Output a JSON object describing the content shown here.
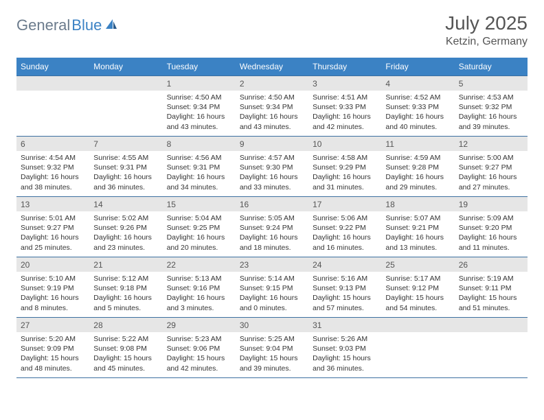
{
  "logo": {
    "text1": "General",
    "text2": "Blue"
  },
  "title": "July 2025",
  "subtitle": "Ketzin, Germany",
  "colors": {
    "header_bg": "#3b82c4",
    "header_text": "#ffffff",
    "daynum_bg": "#e6e6e6",
    "row_border": "#3b6fa0",
    "text": "#333333",
    "title_text": "#555555",
    "logo_gray": "#6b7b8c",
    "logo_blue": "#3b82c4"
  },
  "font": {
    "title_size": 28,
    "subtitle_size": 16,
    "header_size": 12,
    "daynum_size": 12,
    "body_size": 10.5
  },
  "dayHeaders": [
    "Sunday",
    "Monday",
    "Tuesday",
    "Wednesday",
    "Thursday",
    "Friday",
    "Saturday"
  ],
  "weeks": [
    [
      {
        "empty": true
      },
      {
        "empty": true
      },
      {
        "n": "1",
        "sr": "4:50 AM",
        "ss": "9:34 PM",
        "dl": "16 hours and 43 minutes."
      },
      {
        "n": "2",
        "sr": "4:50 AM",
        "ss": "9:34 PM",
        "dl": "16 hours and 43 minutes."
      },
      {
        "n": "3",
        "sr": "4:51 AM",
        "ss": "9:33 PM",
        "dl": "16 hours and 42 minutes."
      },
      {
        "n": "4",
        "sr": "4:52 AM",
        "ss": "9:33 PM",
        "dl": "16 hours and 40 minutes."
      },
      {
        "n": "5",
        "sr": "4:53 AM",
        "ss": "9:32 PM",
        "dl": "16 hours and 39 minutes."
      }
    ],
    [
      {
        "n": "6",
        "sr": "4:54 AM",
        "ss": "9:32 PM",
        "dl": "16 hours and 38 minutes."
      },
      {
        "n": "7",
        "sr": "4:55 AM",
        "ss": "9:31 PM",
        "dl": "16 hours and 36 minutes."
      },
      {
        "n": "8",
        "sr": "4:56 AM",
        "ss": "9:31 PM",
        "dl": "16 hours and 34 minutes."
      },
      {
        "n": "9",
        "sr": "4:57 AM",
        "ss": "9:30 PM",
        "dl": "16 hours and 33 minutes."
      },
      {
        "n": "10",
        "sr": "4:58 AM",
        "ss": "9:29 PM",
        "dl": "16 hours and 31 minutes."
      },
      {
        "n": "11",
        "sr": "4:59 AM",
        "ss": "9:28 PM",
        "dl": "16 hours and 29 minutes."
      },
      {
        "n": "12",
        "sr": "5:00 AM",
        "ss": "9:27 PM",
        "dl": "16 hours and 27 minutes."
      }
    ],
    [
      {
        "n": "13",
        "sr": "5:01 AM",
        "ss": "9:27 PM",
        "dl": "16 hours and 25 minutes."
      },
      {
        "n": "14",
        "sr": "5:02 AM",
        "ss": "9:26 PM",
        "dl": "16 hours and 23 minutes."
      },
      {
        "n": "15",
        "sr": "5:04 AM",
        "ss": "9:25 PM",
        "dl": "16 hours and 20 minutes."
      },
      {
        "n": "16",
        "sr": "5:05 AM",
        "ss": "9:24 PM",
        "dl": "16 hours and 18 minutes."
      },
      {
        "n": "17",
        "sr": "5:06 AM",
        "ss": "9:22 PM",
        "dl": "16 hours and 16 minutes."
      },
      {
        "n": "18",
        "sr": "5:07 AM",
        "ss": "9:21 PM",
        "dl": "16 hours and 13 minutes."
      },
      {
        "n": "19",
        "sr": "5:09 AM",
        "ss": "9:20 PM",
        "dl": "16 hours and 11 minutes."
      }
    ],
    [
      {
        "n": "20",
        "sr": "5:10 AM",
        "ss": "9:19 PM",
        "dl": "16 hours and 8 minutes."
      },
      {
        "n": "21",
        "sr": "5:12 AM",
        "ss": "9:18 PM",
        "dl": "16 hours and 5 minutes."
      },
      {
        "n": "22",
        "sr": "5:13 AM",
        "ss": "9:16 PM",
        "dl": "16 hours and 3 minutes."
      },
      {
        "n": "23",
        "sr": "5:14 AM",
        "ss": "9:15 PM",
        "dl": "16 hours and 0 minutes."
      },
      {
        "n": "24",
        "sr": "5:16 AM",
        "ss": "9:13 PM",
        "dl": "15 hours and 57 minutes."
      },
      {
        "n": "25",
        "sr": "5:17 AM",
        "ss": "9:12 PM",
        "dl": "15 hours and 54 minutes."
      },
      {
        "n": "26",
        "sr": "5:19 AM",
        "ss": "9:11 PM",
        "dl": "15 hours and 51 minutes."
      }
    ],
    [
      {
        "n": "27",
        "sr": "5:20 AM",
        "ss": "9:09 PM",
        "dl": "15 hours and 48 minutes."
      },
      {
        "n": "28",
        "sr": "5:22 AM",
        "ss": "9:08 PM",
        "dl": "15 hours and 45 minutes."
      },
      {
        "n": "29",
        "sr": "5:23 AM",
        "ss": "9:06 PM",
        "dl": "15 hours and 42 minutes."
      },
      {
        "n": "30",
        "sr": "5:25 AM",
        "ss": "9:04 PM",
        "dl": "15 hours and 39 minutes."
      },
      {
        "n": "31",
        "sr": "5:26 AM",
        "ss": "9:03 PM",
        "dl": "15 hours and 36 minutes."
      },
      {
        "empty": true
      },
      {
        "empty": true
      }
    ]
  ],
  "labels": {
    "sunrise": "Sunrise:",
    "sunset": "Sunset:",
    "daylight": "Daylight:"
  }
}
